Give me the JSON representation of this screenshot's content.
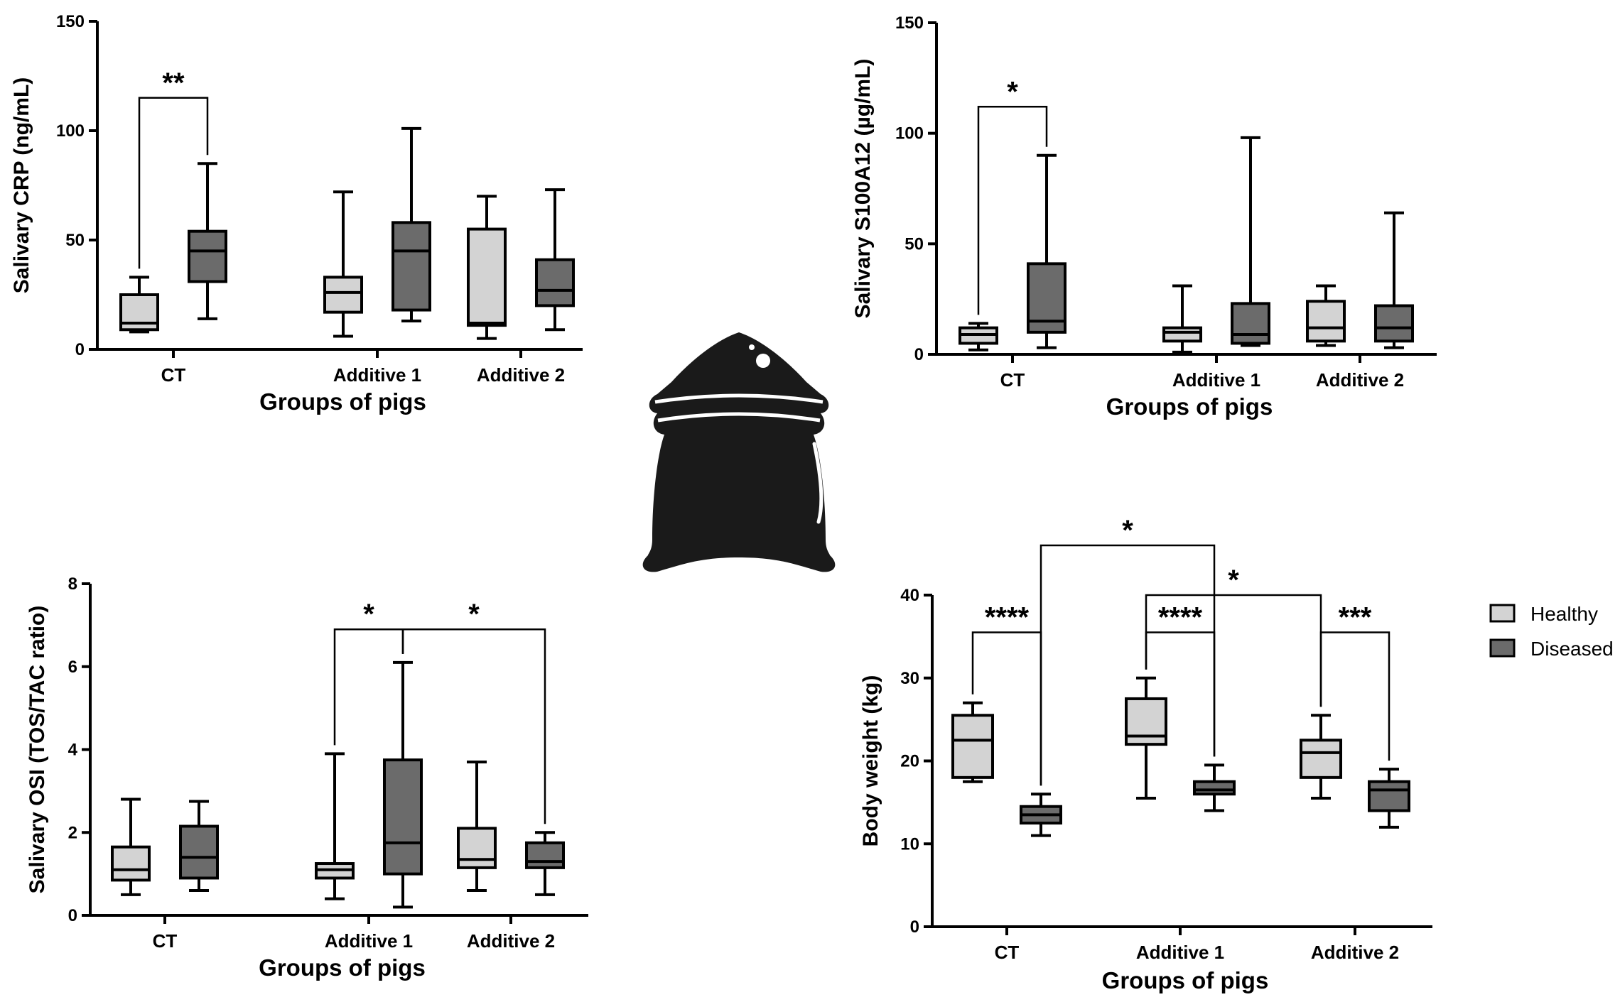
{
  "colors": {
    "healthy": "#d3d3d3",
    "diseased": "#6b6b6b",
    "stroke": "#000000",
    "background": "#ffffff"
  },
  "legend": {
    "healthy_label": "Healthy",
    "diseased_label": "Diseased",
    "placement": "right"
  },
  "center_icon": {
    "name": "feed-sack-icon"
  },
  "chart_data": [
    {
      "type": "boxplot",
      "xlabel": "Groups of pigs",
      "ylabel": "Salivary CRP (ng/mL)",
      "ylim": [
        0,
        150
      ],
      "yticks": [
        0,
        50,
        100,
        150
      ],
      "categories": [
        "CT",
        "Additive 1",
        "Additive 2"
      ],
      "series": [
        {
          "name": "Healthy",
          "boxes": [
            {
              "min": 8,
              "q1": 9,
              "median": 12,
              "q3": 25,
              "max": 33
            },
            {
              "min": 6,
              "q1": 17,
              "median": 26,
              "q3": 33,
              "max": 72
            },
            {
              "min": 5,
              "q1": 11,
              "median": 12,
              "q3": 55,
              "max": 70
            }
          ]
        },
        {
          "name": "Diseased",
          "boxes": [
            {
              "min": 14,
              "q1": 31,
              "median": 45,
              "q3": 54,
              "max": 85
            },
            {
              "min": 13,
              "q1": 18,
              "median": 45,
              "q3": 58,
              "max": 101
            },
            {
              "min": 9,
              "q1": 20,
              "median": 27,
              "q3": 41,
              "max": 73
            }
          ]
        }
      ],
      "annotations": [
        {
          "label": "**",
          "from": [
            0,
            0
          ],
          "to": [
            0,
            1
          ],
          "y": 115
        }
      ]
    },
    {
      "type": "boxplot",
      "xlabel": "Groups of pigs",
      "ylabel": "Salivary S100A12 (µg/mL)",
      "ylim": [
        0,
        150
      ],
      "yticks": [
        0,
        50,
        100,
        150
      ],
      "categories": [
        "CT",
        "Additive 1",
        "Additive 2"
      ],
      "series": [
        {
          "name": "Healthy",
          "boxes": [
            {
              "min": 2,
              "q1": 5,
              "median": 9,
              "q3": 12,
              "max": 14
            },
            {
              "min": 1,
              "q1": 6,
              "median": 10,
              "q3": 12,
              "max": 31
            },
            {
              "min": 4,
              "q1": 6,
              "median": 12,
              "q3": 24,
              "max": 31
            }
          ]
        },
        {
          "name": "Diseased",
          "boxes": [
            {
              "min": 3,
              "q1": 10,
              "median": 15,
              "q3": 41,
              "max": 90
            },
            {
              "min": 4,
              "q1": 5,
              "median": 9,
              "q3": 23,
              "max": 98
            },
            {
              "min": 3,
              "q1": 6,
              "median": 12,
              "q3": 22,
              "max": 64
            }
          ]
        }
      ],
      "annotations": [
        {
          "label": "*",
          "from": [
            0,
            0
          ],
          "to": [
            0,
            1
          ],
          "y": 112
        }
      ]
    },
    {
      "type": "boxplot",
      "xlabel": "Groups of pigs",
      "ylabel": "Salivary OSI (TOS/TAC ratio)",
      "ylim": [
        0,
        8
      ],
      "yticks": [
        0,
        2,
        4,
        6,
        8
      ],
      "categories": [
        "CT",
        "Additive 1",
        "Additive 2"
      ],
      "series": [
        {
          "name": "Healthy",
          "boxes": [
            {
              "min": 0.5,
              "q1": 0.85,
              "median": 1.1,
              "q3": 1.65,
              "max": 2.8
            },
            {
              "min": 0.4,
              "q1": 0.9,
              "median": 1.1,
              "q3": 1.25,
              "max": 3.9
            },
            {
              "min": 0.6,
              "q1": 1.15,
              "median": 1.35,
              "q3": 2.1,
              "max": 3.7
            }
          ]
        },
        {
          "name": "Diseased",
          "boxes": [
            {
              "min": 0.6,
              "q1": 0.9,
              "median": 1.4,
              "q3": 2.15,
              "max": 2.75
            },
            {
              "min": 0.2,
              "q1": 1.0,
              "median": 1.75,
              "q3": 3.75,
              "max": 6.1
            },
            {
              "min": 0.5,
              "q1": 1.15,
              "median": 1.3,
              "q3": 1.75,
              "max": 2.0
            }
          ]
        }
      ],
      "annotations": [
        {
          "label": "*",
          "from": [
            1,
            0
          ],
          "to": [
            1,
            1
          ],
          "y": 6.9
        },
        {
          "label": "*",
          "from": [
            1,
            1
          ],
          "to": [
            2,
            1
          ],
          "y": 6.9
        }
      ]
    },
    {
      "type": "boxplot",
      "xlabel": "Groups of pigs",
      "ylabel": "Body weight (kg)",
      "ylim": [
        0,
        40
      ],
      "yticks": [
        0,
        10,
        20,
        30,
        40
      ],
      "categories": [
        "CT",
        "Additive 1",
        "Additive 2"
      ],
      "series": [
        {
          "name": "Healthy",
          "boxes": [
            {
              "min": 17.5,
              "q1": 18,
              "median": 22.5,
              "q3": 25.5,
              "max": 27
            },
            {
              "min": 15.5,
              "q1": 22,
              "median": 23,
              "q3": 27.5,
              "max": 30
            },
            {
              "min": 15.5,
              "q1": 18,
              "median": 21,
              "q3": 22.5,
              "max": 25.5
            }
          ]
        },
        {
          "name": "Diseased",
          "boxes": [
            {
              "min": 11,
              "q1": 12.5,
              "median": 13.5,
              "q3": 14.5,
              "max": 16
            },
            {
              "min": 14,
              "q1": 16,
              "median": 16.5,
              "q3": 17.5,
              "max": 19.5
            },
            {
              "min": 12,
              "q1": 14,
              "median": 16.5,
              "q3": 17.5,
              "max": 19
            }
          ]
        }
      ],
      "annotations": [
        {
          "label": "****",
          "from": [
            0,
            0
          ],
          "to": [
            0,
            1
          ],
          "y": 35.5
        },
        {
          "label": "****",
          "from": [
            1,
            0
          ],
          "to": [
            1,
            1
          ],
          "y": 35.5
        },
        {
          "label": "***",
          "from": [
            2,
            0
          ],
          "to": [
            2,
            1
          ],
          "y": 35.5
        },
        {
          "label": "*",
          "from": [
            0,
            1
          ],
          "to": [
            1,
            1
          ],
          "y": 46
        },
        {
          "label": "*",
          "from": [
            1,
            0
          ],
          "to": [
            2,
            0
          ],
          "y": 40
        }
      ]
    }
  ]
}
